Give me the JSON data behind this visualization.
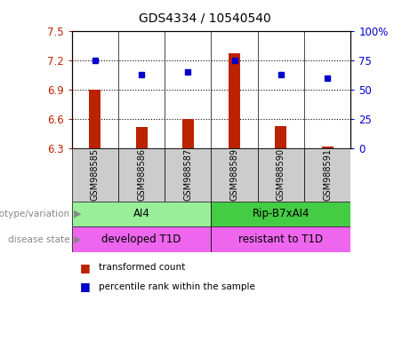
{
  "title": "GDS4334 / 10540540",
  "samples": [
    "GSM988585",
    "GSM988586",
    "GSM988587",
    "GSM988589",
    "GSM988590",
    "GSM988591"
  ],
  "bar_values": [
    6.9,
    6.52,
    6.6,
    7.27,
    6.53,
    6.32
  ],
  "dot_values": [
    75,
    63,
    65,
    75,
    63,
    60
  ],
  "ylim_left": [
    6.3,
    7.5
  ],
  "ylim_right": [
    0,
    100
  ],
  "yticks_left": [
    6.3,
    6.6,
    6.9,
    7.2,
    7.5
  ],
  "ytick_labels_left": [
    "6.3",
    "6.6",
    "6.9",
    "7.2",
    "7.5"
  ],
  "yticks_right": [
    0,
    25,
    50,
    75,
    100
  ],
  "ytick_labels_right": [
    "0",
    "25",
    "50",
    "75",
    "100%"
  ],
  "hlines": [
    7.2,
    6.9,
    6.6
  ],
  "bar_color": "#bb2200",
  "dot_color": "#0000cc",
  "bar_width": 0.25,
  "genotype_labels": [
    [
      "AI4",
      0,
      2
    ],
    [
      "Rip-B7xAI4",
      3,
      5
    ]
  ],
  "genotype_colors": [
    "#99ee99",
    "#44cc44"
  ],
  "disease_labels": [
    [
      "developed T1D",
      0,
      2
    ],
    [
      "resistant to T1D",
      3,
      5
    ]
  ],
  "disease_color": "#ee66ee",
  "row_labels": [
    "genotype/variation",
    "disease state"
  ],
  "legend_items": [
    [
      "transformed count",
      "#bb2200"
    ],
    [
      "percentile rank within the sample",
      "#0000cc"
    ]
  ],
  "sample_bg": "#cccccc"
}
